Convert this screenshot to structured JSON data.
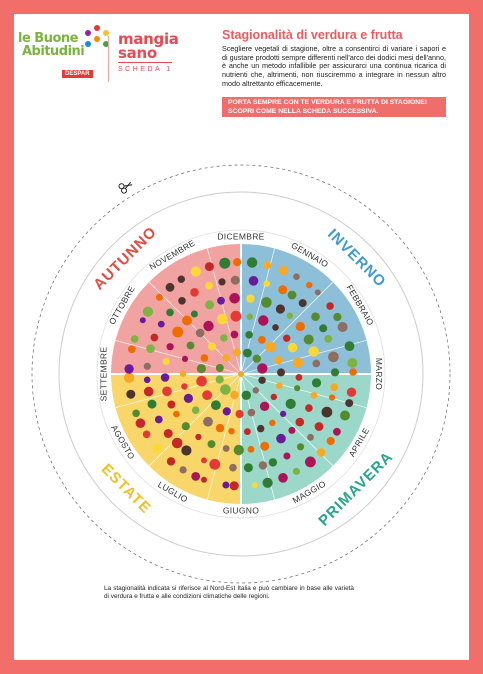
{
  "header": {
    "logo_line1": "le Buone",
    "logo_line2": "Abitudini",
    "logo_brand": "DESPAR",
    "brand_title_1": "mangia",
    "brand_title_2": "sano",
    "brand_subtitle": "SCHEDA 1",
    "title": "Stagionalità di verdura e frutta",
    "intro": "Scegliere vegetali di stagione, oltre a consentirci di variare i sapori e di gustare prodotti sempre differenti nell'arco dei dodici mesi dell'anno, è anche un metodo infallibile per assicurarci una continua ricarica di nutrienti che, altrimenti, non riusciremmo a integrare in nessun altro modo altrettanto efficacemente.",
    "banner": "PORTA SEMPRE CON TE VERDURA E FRUTTA DI STAGIONE! SCOPRI COME NELLA SCHEDA SUCCESSIVA."
  },
  "wheel": {
    "seasons": [
      {
        "name": "AUTUNNO",
        "color": "#e64a3f"
      },
      {
        "name": "INVERNO",
        "color": "#3d9bd4"
      },
      {
        "name": "PRIMAVERA",
        "color": "#27a58f"
      },
      {
        "name": "ESTATE",
        "color": "#f2c21c"
      }
    ],
    "months": [
      "DICEMBRE",
      "GENNAIO",
      "FEBBRAIO",
      "MARZO",
      "APRILE",
      "MAGGIO",
      "GIUGNO",
      "LUGLIO",
      "AGOSTO",
      "SETTEMBRE",
      "OTTOBRE",
      "NOVEMBRE"
    ],
    "quadrant_colors": {
      "autunno": "#f0a3a1",
      "inverno": "#8dbfd8",
      "primavera": "#9bd8c9",
      "estate": "#f8d66a"
    },
    "scissors_icon": "scissors-icon"
  },
  "footer": {
    "note": "La stagionalità indicata si riferisce al Nord-Est Italia e può cambiare in base alle varietà di verdura e frutta e alle condizioni climatiche delle regioni."
  }
}
